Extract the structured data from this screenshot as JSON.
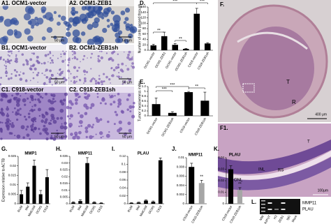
{
  "images": [
    {
      "label": "A1. OCM1-vector",
      "scale": "50 μm"
    },
    {
      "label": "A2. OCM1-ZEB1",
      "scale": "50 μm"
    },
    {
      "label": "B1. OCM1-vector",
      "scale": "50 μm"
    },
    {
      "label": "B2. OCM1-ZEB1sh",
      "scale": "50 μm"
    },
    {
      "label": "C1. C918-vector",
      "scale": "50 μm"
    },
    {
      "label": "C2. C918-ZEB1sh",
      "scale": "50 μm"
    },
    {
      "label": "F.",
      "marks": [
        "T",
        "R"
      ],
      "scale": "400 μm"
    },
    {
      "label": "F1.",
      "marks": [
        "INL",
        "RS",
        "ONL",
        "T"
      ],
      "scale": "100μm"
    },
    {
      "label": "L.",
      "lanes": [
        "MW",
        "INPUT",
        "H3",
        "ZEB1",
        "IgG",
        "Mock"
      ],
      "bands": [
        "MMP11",
        "PLAU"
      ]
    }
  ],
  "chart_data": [
    {
      "type": "bar",
      "label": "D.",
      "y_label": "Number of cells passed through",
      "categories": [
        "OCM1-vector",
        "OCM1-ZEB1",
        "OCM1-vector",
        "OCM1-ZEB1sh",
        "C918-vector",
        "C918-ZEB1sh"
      ],
      "values": [
        18,
        52,
        20,
        5,
        135,
        25
      ],
      "errors": [
        4,
        15,
        5,
        2,
        20,
        3
      ],
      "color": "#000000",
      "ylim": [
        0,
        160
      ],
      "yticks": [
        0,
        20,
        40,
        60,
        80,
        100,
        120,
        140,
        160
      ],
      "annotations": [
        "**",
        "**",
        "***",
        "***"
      ]
    },
    {
      "type": "bar",
      "label": "E.",
      "y_label": "Tumor invasiveness index",
      "categories": [
        "OCM1-vector",
        "OCM1-ZEB1sh",
        "C918-vector",
        "C918-ZEB1sh"
      ],
      "values": [
        0.48,
        0.12,
        0.97,
        0.62
      ],
      "errors": [
        0.25,
        0.05,
        0.03,
        0.35
      ],
      "color": "#000000",
      "ylim": [
        0,
        1.2
      ],
      "yticks": [
        0,
        0.2,
        0.4,
        0.6,
        0.8,
        1,
        1.2
      ],
      "annotations": [
        "***",
        "***",
        "**"
      ]
    },
    {
      "type": "bar",
      "label": "G.",
      "title": "MMP1",
      "y_label": "Expression relative to ACTB",
      "categories": [
        "RUM",
        "Mel",
        "MelCAM",
        "OCM1",
        "C918"
      ],
      "values": [
        0.005,
        0.009,
        0.02,
        0.005,
        0.014
      ],
      "errors": [
        0.002,
        0.002,
        0.003,
        0.002,
        0.004
      ],
      "color": "#000000",
      "ylim": [
        0,
        0.025
      ],
      "yticks": [
        0,
        0.005,
        0.01,
        0.015,
        0.02,
        0.025
      ],
      "annotations": []
    },
    {
      "type": "bar",
      "label": "H.",
      "title": "MMP11",
      "categories": [
        "RUM",
        "Mel",
        "MelCAM",
        "OCM1",
        "C918"
      ],
      "values": [
        0.001,
        0.002,
        0.03,
        0.001,
        0.0005
      ],
      "errors": [
        0.0005,
        0.001,
        0.004,
        0.0005,
        0.0003
      ],
      "color": "#000000",
      "ylim": [
        0,
        0.035
      ],
      "yticks": [
        0,
        0.005,
        0.01,
        0.015,
        0.02,
        0.025,
        0.03,
        0.035
      ],
      "annotations": []
    },
    {
      "type": "bar",
      "label": "I.",
      "title": "PLAU",
      "categories": [
        "RUM",
        "Mel",
        "MelCAM",
        "OCM1",
        "C918"
      ],
      "values": [
        0.002,
        0.003,
        0.008,
        0.005,
        0.11
      ],
      "errors": [
        0.001,
        0.001,
        0.002,
        0.002,
        0.006
      ],
      "color": "#000000",
      "ylim": [
        0,
        0.12
      ],
      "yticks": [
        0,
        0.02,
        0.04,
        0.06,
        0.08,
        0.1,
        0.12
      ],
      "annotations": []
    },
    {
      "type": "bar",
      "label": "J.",
      "title": "MMP11",
      "categories": [
        "C918-vector",
        "C918-ZEB1sh"
      ],
      "values": [
        0.008,
        0.0045
      ],
      "errors": [
        0.0008,
        0.0006
      ],
      "colors": [
        "#000000",
        "#a6a6a6"
      ],
      "ylim": [
        0,
        0.01
      ],
      "yticks": [
        0,
        0.002,
        0.004,
        0.006,
        0.008,
        0.01
      ],
      "annotations": [
        "**"
      ]
    },
    {
      "type": "bar",
      "label": "K.",
      "title": "PLAU",
      "categories": [
        "C918-vector",
        "C918-ZEB1sh"
      ],
      "values": [
        0.03,
        0.012
      ],
      "errors": [
        0.003,
        0.002
      ],
      "colors": [
        "#000000",
        "#a6a6a6"
      ],
      "ylim": [
        0,
        0.04
      ],
      "yticks": [
        0,
        0.01,
        0.02,
        0.03,
        0.04
      ],
      "annotations": [
        "**"
      ]
    }
  ]
}
